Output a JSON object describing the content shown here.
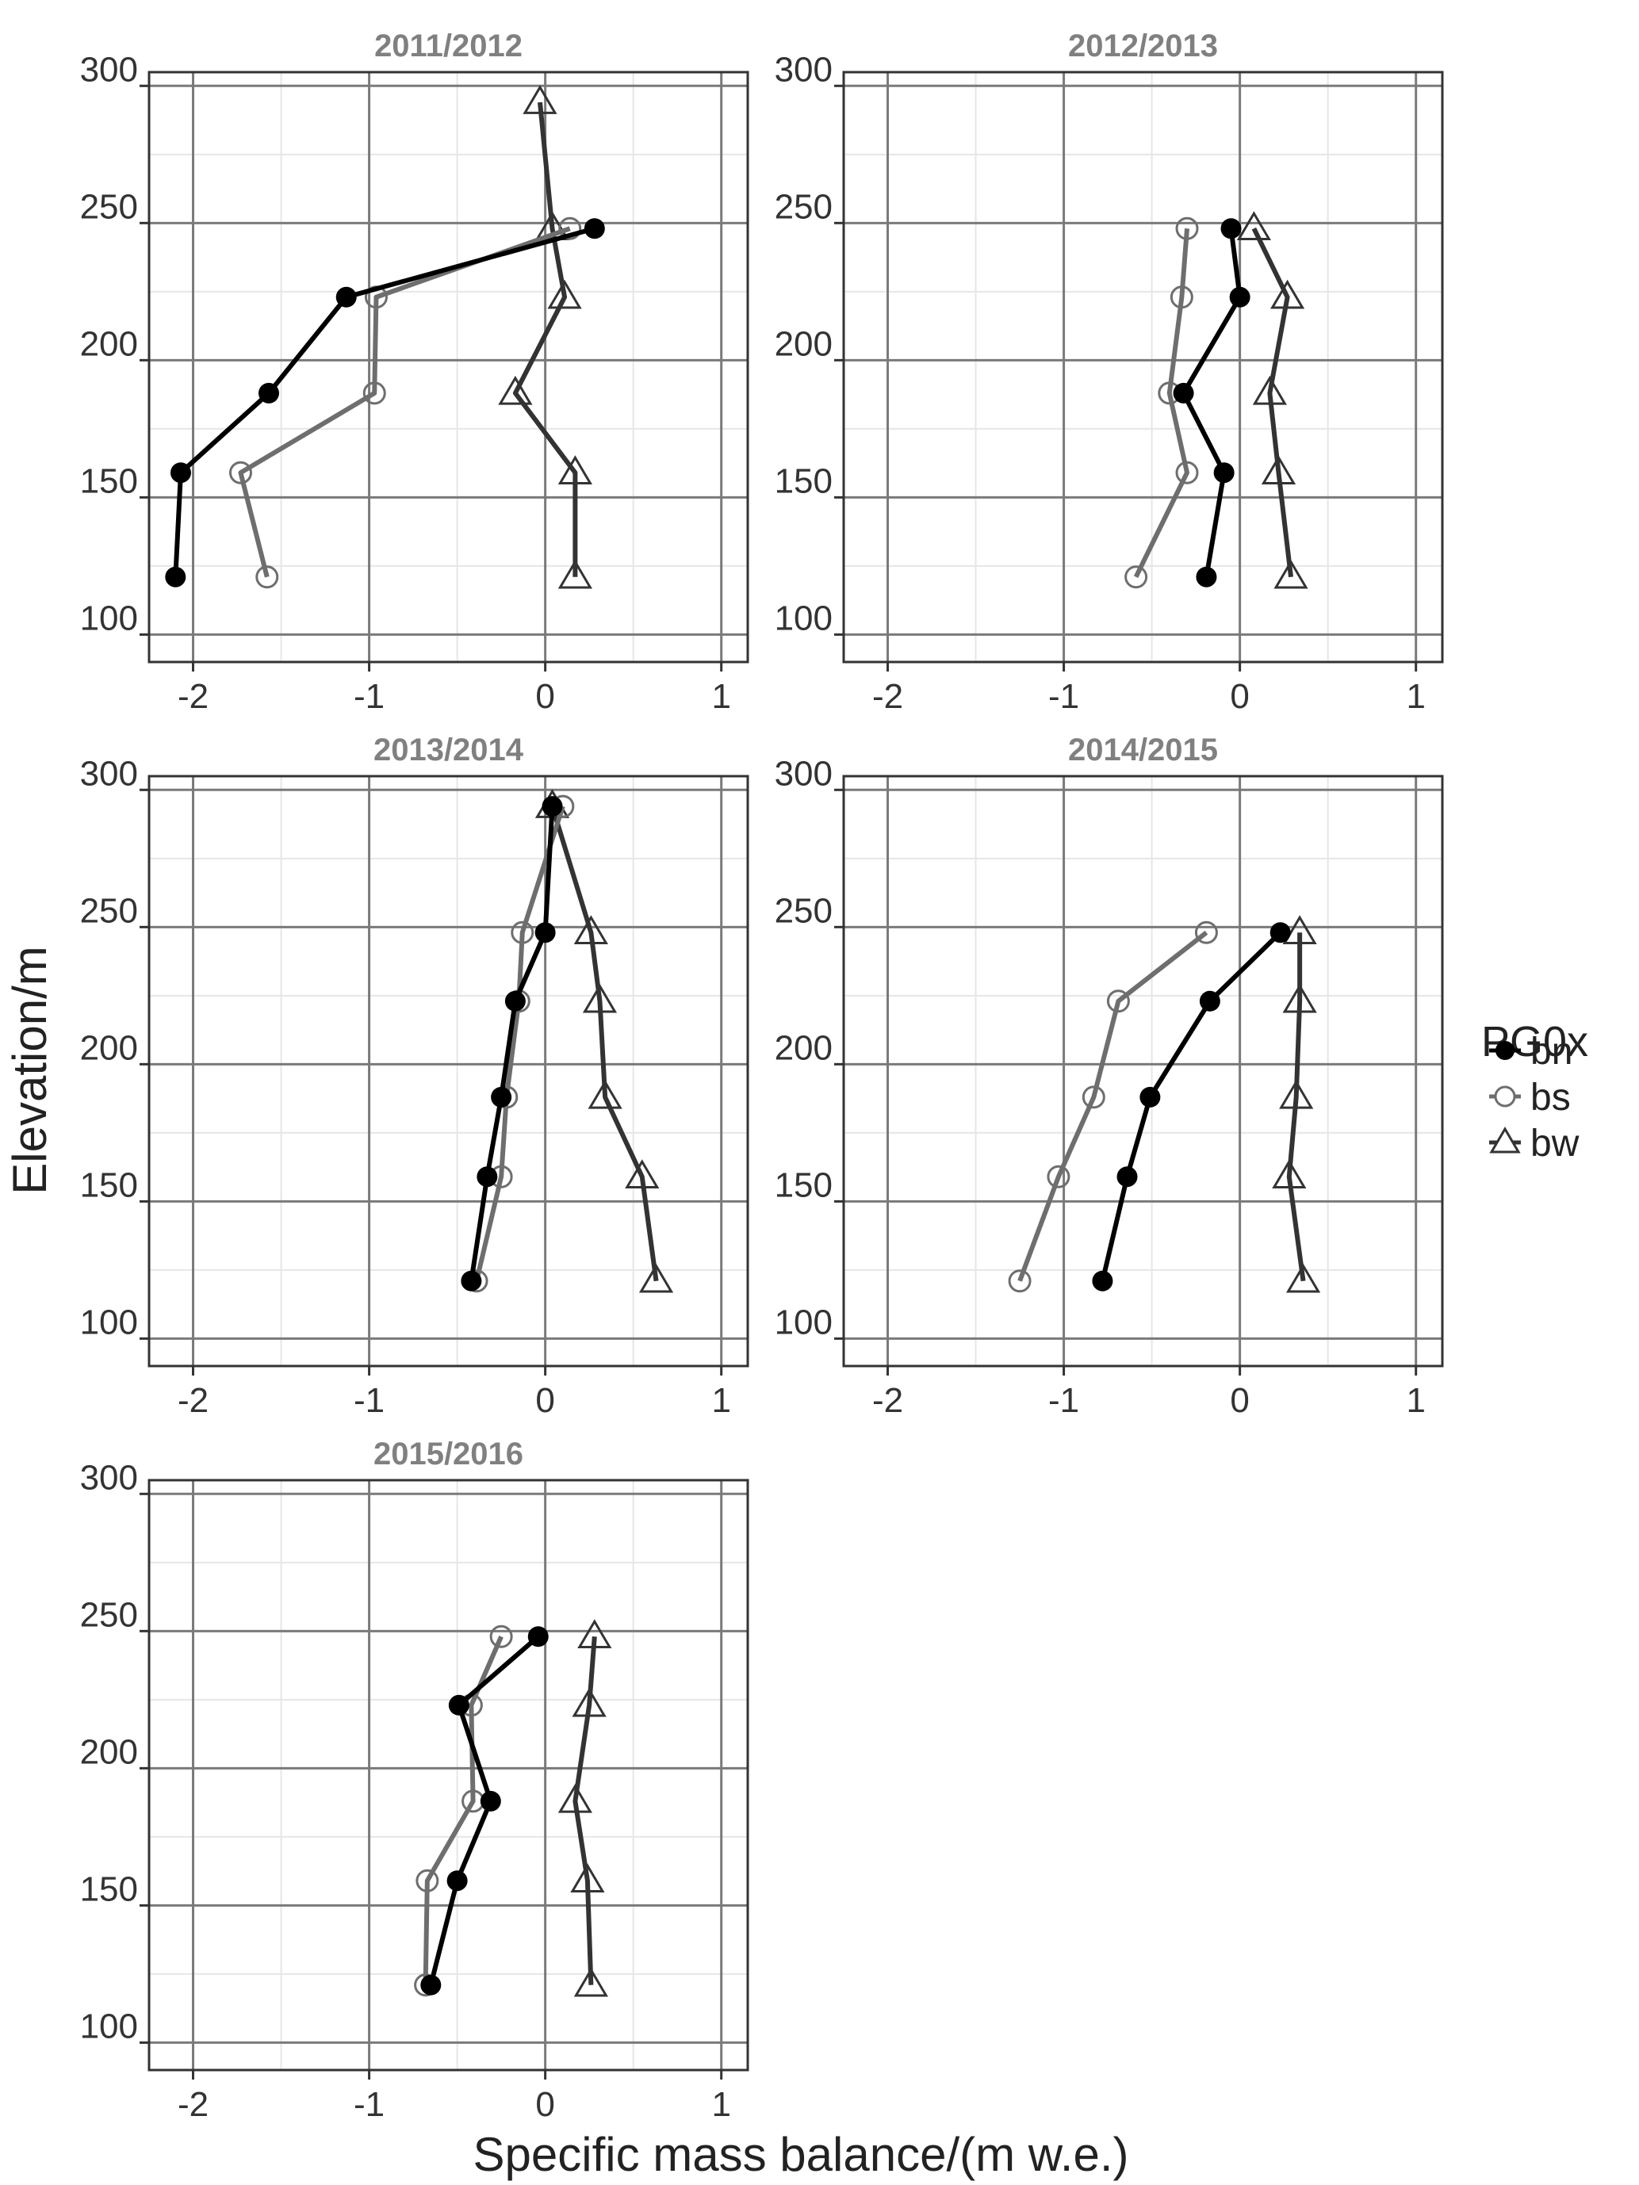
{
  "figure": {
    "xlabel": "Specific mass balance/(m w.e.)",
    "ylabel": "Elevation/m"
  },
  "legend": {
    "title": "PG0x",
    "entries": [
      {
        "key": "bn",
        "label": "bn"
      },
      {
        "key": "bs",
        "label": "bs"
      },
      {
        "key": "bw",
        "label": "bw"
      }
    ]
  },
  "styles": {
    "bn": {
      "color": "#000000",
      "marker": "filled-circle"
    },
    "bs": {
      "color": "#6e6e6e",
      "marker": "open-circle"
    },
    "bw": {
      "color": "#333333",
      "marker": "open-triangle"
    }
  },
  "chart_data": [
    {
      "type": "line",
      "title": "2011/2012",
      "xlim": [
        -2.25,
        1.15
      ],
      "ylim": [
        90,
        305
      ],
      "xticks": [
        -2,
        -1,
        0,
        1
      ],
      "yticks": [
        100,
        150,
        200,
        250,
        300
      ],
      "grid": true,
      "series": [
        {
          "name": "bn",
          "points": [
            [
              -2.1,
              121
            ],
            [
              -2.07,
              159
            ],
            [
              -1.57,
              188
            ],
            [
              -1.13,
              223
            ],
            [
              0.28,
              248
            ]
          ]
        },
        {
          "name": "bs",
          "points": [
            [
              -1.58,
              121
            ],
            [
              -1.73,
              159
            ],
            [
              -0.97,
              188
            ],
            [
              -0.96,
              223
            ],
            [
              0.14,
              248
            ]
          ]
        },
        {
          "name": "bw",
          "points": [
            [
              0.17,
              121
            ],
            [
              0.17,
              159
            ],
            [
              -0.17,
              188
            ],
            [
              0.11,
              223
            ],
            [
              0.04,
              248
            ],
            [
              -0.03,
              294
            ]
          ]
        }
      ]
    },
    {
      "type": "line",
      "title": "2012/2013",
      "xlim": [
        -2.25,
        1.15
      ],
      "ylim": [
        90,
        305
      ],
      "xticks": [
        -2,
        -1,
        0,
        1
      ],
      "yticks": [
        100,
        150,
        200,
        250,
        300
      ],
      "grid": true,
      "series": [
        {
          "name": "bn",
          "points": [
            [
              -0.19,
              121
            ],
            [
              -0.09,
              159
            ],
            [
              -0.32,
              188
            ],
            [
              0.0,
              223
            ],
            [
              -0.05,
              248
            ]
          ]
        },
        {
          "name": "bs",
          "points": [
            [
              -0.59,
              121
            ],
            [
              -0.3,
              159
            ],
            [
              -0.4,
              188
            ],
            [
              -0.33,
              223
            ],
            [
              -0.3,
              248
            ]
          ]
        },
        {
          "name": "bw",
          "points": [
            [
              0.29,
              121
            ],
            [
              0.22,
              159
            ],
            [
              0.17,
              188
            ],
            [
              0.27,
              223
            ],
            [
              0.08,
              248
            ]
          ]
        }
      ]
    },
    {
      "type": "line",
      "title": "2013/2014",
      "xlim": [
        -2.25,
        1.15
      ],
      "ylim": [
        90,
        305
      ],
      "xticks": [
        -2,
        -1,
        0,
        1
      ],
      "yticks": [
        100,
        150,
        200,
        250,
        300
      ],
      "grid": true,
      "series": [
        {
          "name": "bn",
          "points": [
            [
              -0.42,
              121
            ],
            [
              -0.33,
              159
            ],
            [
              -0.25,
              188
            ],
            [
              -0.17,
              223
            ],
            [
              0.0,
              248
            ],
            [
              0.04,
              294
            ]
          ]
        },
        {
          "name": "bs",
          "points": [
            [
              -0.39,
              121
            ],
            [
              -0.25,
              159
            ],
            [
              -0.22,
              188
            ],
            [
              -0.15,
              223
            ],
            [
              -0.13,
              248
            ],
            [
              0.1,
              294
            ]
          ]
        },
        {
          "name": "bw",
          "points": [
            [
              0.63,
              121
            ],
            [
              0.55,
              159
            ],
            [
              0.34,
              188
            ],
            [
              0.31,
              223
            ],
            [
              0.26,
              248
            ],
            [
              0.04,
              294
            ]
          ]
        }
      ]
    },
    {
      "type": "line",
      "title": "2014/2015",
      "xlim": [
        -2.25,
        1.15
      ],
      "ylim": [
        90,
        305
      ],
      "xticks": [
        -2,
        -1,
        0,
        1
      ],
      "yticks": [
        100,
        150,
        200,
        250,
        300
      ],
      "grid": true,
      "series": [
        {
          "name": "bn",
          "points": [
            [
              -0.78,
              121
            ],
            [
              -0.64,
              159
            ],
            [
              -0.51,
              188
            ],
            [
              -0.17,
              223
            ],
            [
              0.23,
              248
            ]
          ]
        },
        {
          "name": "bs",
          "points": [
            [
              -1.25,
              121
            ],
            [
              -1.03,
              159
            ],
            [
              -0.83,
              188
            ],
            [
              -0.69,
              223
            ],
            [
              -0.19,
              248
            ]
          ]
        },
        {
          "name": "bw",
          "points": [
            [
              0.36,
              121
            ],
            [
              0.28,
              159
            ],
            [
              0.32,
              188
            ],
            [
              0.34,
              223
            ],
            [
              0.34,
              248
            ]
          ]
        }
      ]
    },
    {
      "type": "line",
      "title": "2015/2016",
      "xlim": [
        -2.25,
        1.15
      ],
      "ylim": [
        90,
        305
      ],
      "xticks": [
        -2,
        -1,
        0,
        1
      ],
      "yticks": [
        100,
        150,
        200,
        250,
        300
      ],
      "grid": true,
      "series": [
        {
          "name": "bn",
          "points": [
            [
              -0.65,
              121
            ],
            [
              -0.5,
              159
            ],
            [
              -0.31,
              188
            ],
            [
              -0.49,
              223
            ],
            [
              -0.04,
              248
            ]
          ]
        },
        {
          "name": "bs",
          "points": [
            [
              -0.68,
              121
            ],
            [
              -0.67,
              159
            ],
            [
              -0.41,
              188
            ],
            [
              -0.42,
              223
            ],
            [
              -0.25,
              248
            ]
          ]
        },
        {
          "name": "bw",
          "points": [
            [
              0.26,
              121
            ],
            [
              0.24,
              159
            ],
            [
              0.17,
              188
            ],
            [
              0.25,
              223
            ],
            [
              0.28,
              248
            ]
          ]
        }
      ]
    }
  ]
}
